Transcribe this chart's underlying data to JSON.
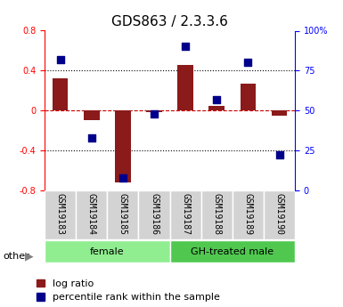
{
  "title": "GDS863 / 2.3.3.6",
  "samples": [
    "GSM19183",
    "GSM19184",
    "GSM19185",
    "GSM19186",
    "GSM19187",
    "GSM19188",
    "GSM19189",
    "GSM19190"
  ],
  "log_ratio": [
    0.32,
    -0.1,
    -0.72,
    -0.02,
    0.46,
    0.05,
    0.27,
    -0.05
  ],
  "percentile_rank": [
    82,
    33,
    8,
    48,
    90,
    57,
    80,
    22
  ],
  "groups": [
    {
      "label": "female",
      "start": 0,
      "end": 4,
      "color": "#90EE90"
    },
    {
      "label": "GH-treated male",
      "start": 4,
      "end": 8,
      "color": "#50C850"
    }
  ],
  "left_ylim": [
    -0.8,
    0.8
  ],
  "right_ylim": [
    0,
    100
  ],
  "left_yticks": [
    -0.8,
    -0.4,
    0,
    0.4,
    0.8
  ],
  "right_yticks": [
    0,
    25,
    50,
    75,
    100
  ],
  "right_yticklabels": [
    "0",
    "25",
    "50",
    "75",
    "100%"
  ],
  "bar_color": "#8B1A1A",
  "dot_color": "#00008B",
  "bar_width": 0.5,
  "dot_size": 30,
  "grid_color": "#000000",
  "dashed_zero_color": "#CC0000",
  "title_fontsize": 11,
  "tick_fontsize": 7,
  "label_fontsize": 8,
  "legend_fontsize": 8
}
